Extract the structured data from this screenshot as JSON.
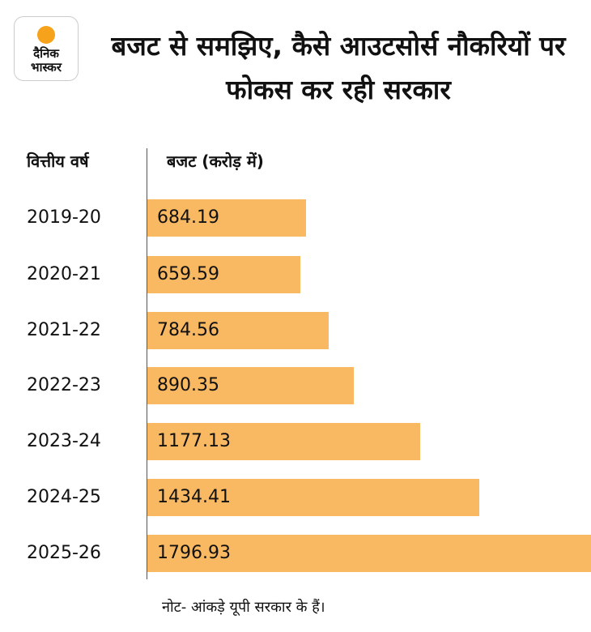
{
  "logo": {
    "line1": "दैनिक",
    "line2": "भास्कर"
  },
  "chart_data": {
    "type": "bar",
    "orientation": "horizontal",
    "title": "बजट से समझिए, कैसे आउटसोर्स नौकरियों पर फोकस कर रही सरकार",
    "xlabel": "बजट (करोड़ में)",
    "ylabel": "वित्तीय वर्ष",
    "categories": [
      "2019-20",
      "2020-21",
      "2021-22",
      "2022-23",
      "2023-24",
      "2024-25",
      "2025-26"
    ],
    "values": [
      684.19,
      659.59,
      784.56,
      890.35,
      1177.13,
      1434.41,
      1796.93
    ],
    "value_labels": [
      "684.19",
      "659.59",
      "784.56",
      "890.35",
      "1177.13",
      "1434.41",
      "1796.93"
    ],
    "xlim": [
      0,
      1920
    ],
    "bar_color": "#f9b862",
    "note": "नोट- आंकड़े यूपी सरकार के हैं।"
  }
}
